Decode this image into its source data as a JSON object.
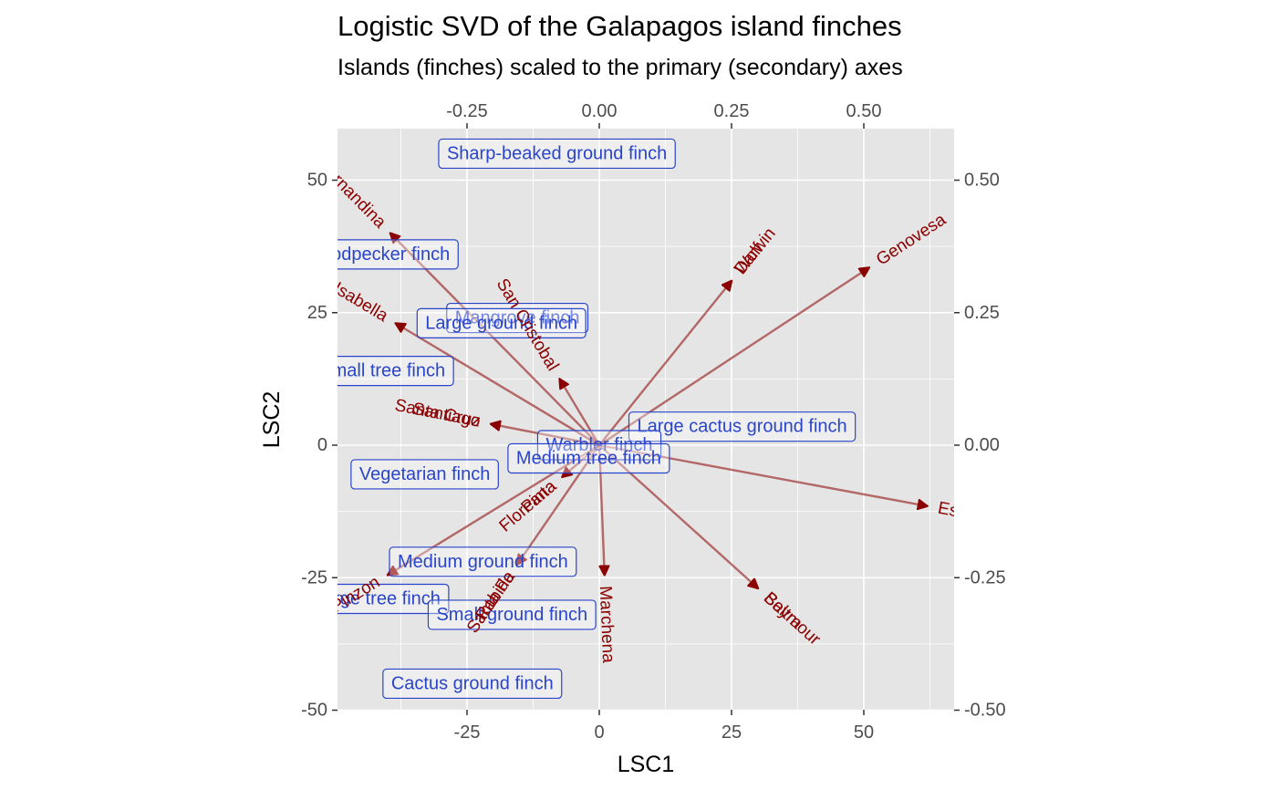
{
  "chart_data": {
    "type": "biplot",
    "title": "Logistic SVD of the Galapagos island finches",
    "subtitle": "Islands (finches) scaled to the primary (secondary) axes",
    "xlabel": "LSC1",
    "ylabel": "LSC2",
    "primary_axes": {
      "xlim": [
        -50,
        67
      ],
      "ylim": [
        -50,
        50
      ],
      "xticks": [
        -25,
        0,
        25,
        50
      ],
      "xtick_labels": [
        "-25",
        "0",
        "25",
        "50"
      ],
      "yticks": [
        -50,
        -25,
        0,
        25,
        50
      ],
      "ytick_labels": [
        "-50",
        "-25",
        "0",
        "25",
        "50"
      ]
    },
    "secondary_axes": {
      "xticks": [
        -0.25,
        0.0,
        0.25,
        0.5
      ],
      "xtick_labels": [
        "-0.25",
        "0.00",
        "0.25",
        "0.50"
      ],
      "yticks": [
        -0.5,
        -0.25,
        0.0,
        0.25,
        0.5
      ],
      "ytick_labels": [
        "-0.50",
        "-0.25",
        "0.00",
        "0.25",
        "0.50"
      ]
    },
    "grid": true,
    "colors": {
      "panel": "#e5e5e5",
      "grid": "#ffffff",
      "arrow": "#8b0000",
      "island_text": "#8b0000",
      "finch_text": "#2a45c9",
      "finch_border": "#2a45c9"
    },
    "islands": [
      {
        "name": "Fernandina",
        "x": -39.5,
        "y": 40
      },
      {
        "name": "Isabella",
        "x": -38.5,
        "y": 23
      },
      {
        "name": "San Cristobal",
        "x": -7.5,
        "y": 12.5
      },
      {
        "name": "Santiago",
        "x": -20.5,
        "y": 4
      },
      {
        "name": "Santa Cruz",
        "x": -20.5,
        "y": 4
      },
      {
        "name": "Darwin",
        "x": 25,
        "y": 31
      },
      {
        "name": "Wolf",
        "x": 25,
        "y": 31
      },
      {
        "name": "Genovesa",
        "x": 51,
        "y": 33.5
      },
      {
        "name": "Espanola",
        "x": 62,
        "y": -11.5
      },
      {
        "name": "Baltra",
        "x": 30,
        "y": -27
      },
      {
        "name": "Seymour",
        "x": 30,
        "y": -27
      },
      {
        "name": "Marchena",
        "x": 1,
        "y": -24.5
      },
      {
        "name": "Pinta",
        "x": -7,
        "y": -6
      },
      {
        "name": "Floreana",
        "x": -7,
        "y": -6
      },
      {
        "name": "Santa Fe",
        "x": -15.5,
        "y": -22.5
      },
      {
        "name": "Rabida",
        "x": -15.5,
        "y": -22.5
      },
      {
        "name": "Pinzon",
        "x": -40,
        "y": -24.5
      }
    ],
    "finches": [
      {
        "name": "Sharp-beaked ground finch",
        "x": -8,
        "y": 55
      },
      {
        "name": "Woodpecker finch",
        "x": -42,
        "y": 36
      },
      {
        "name": "Mangrove finch",
        "x": -15.5,
        "y": 24
      },
      {
        "name": "Large ground finch",
        "x": -18.5,
        "y": 23
      },
      {
        "name": "Small tree finch",
        "x": -41,
        "y": 14
      },
      {
        "name": "Large cactus ground finch",
        "x": 27,
        "y": 3.5
      },
      {
        "name": "Warbler finch",
        "x": 0,
        "y": 0
      },
      {
        "name": "Medium tree finch",
        "x": -2,
        "y": -2.5
      },
      {
        "name": "Vegetarian finch",
        "x": -33,
        "y": -5.5
      },
      {
        "name": "Medium ground finch",
        "x": -22,
        "y": -22
      },
      {
        "name": "Large tree finch",
        "x": -42,
        "y": -29
      },
      {
        "name": "Small ground finch",
        "x": -16.5,
        "y": -32
      },
      {
        "name": "Cactus ground finch",
        "x": -24,
        "y": -45
      }
    ]
  }
}
